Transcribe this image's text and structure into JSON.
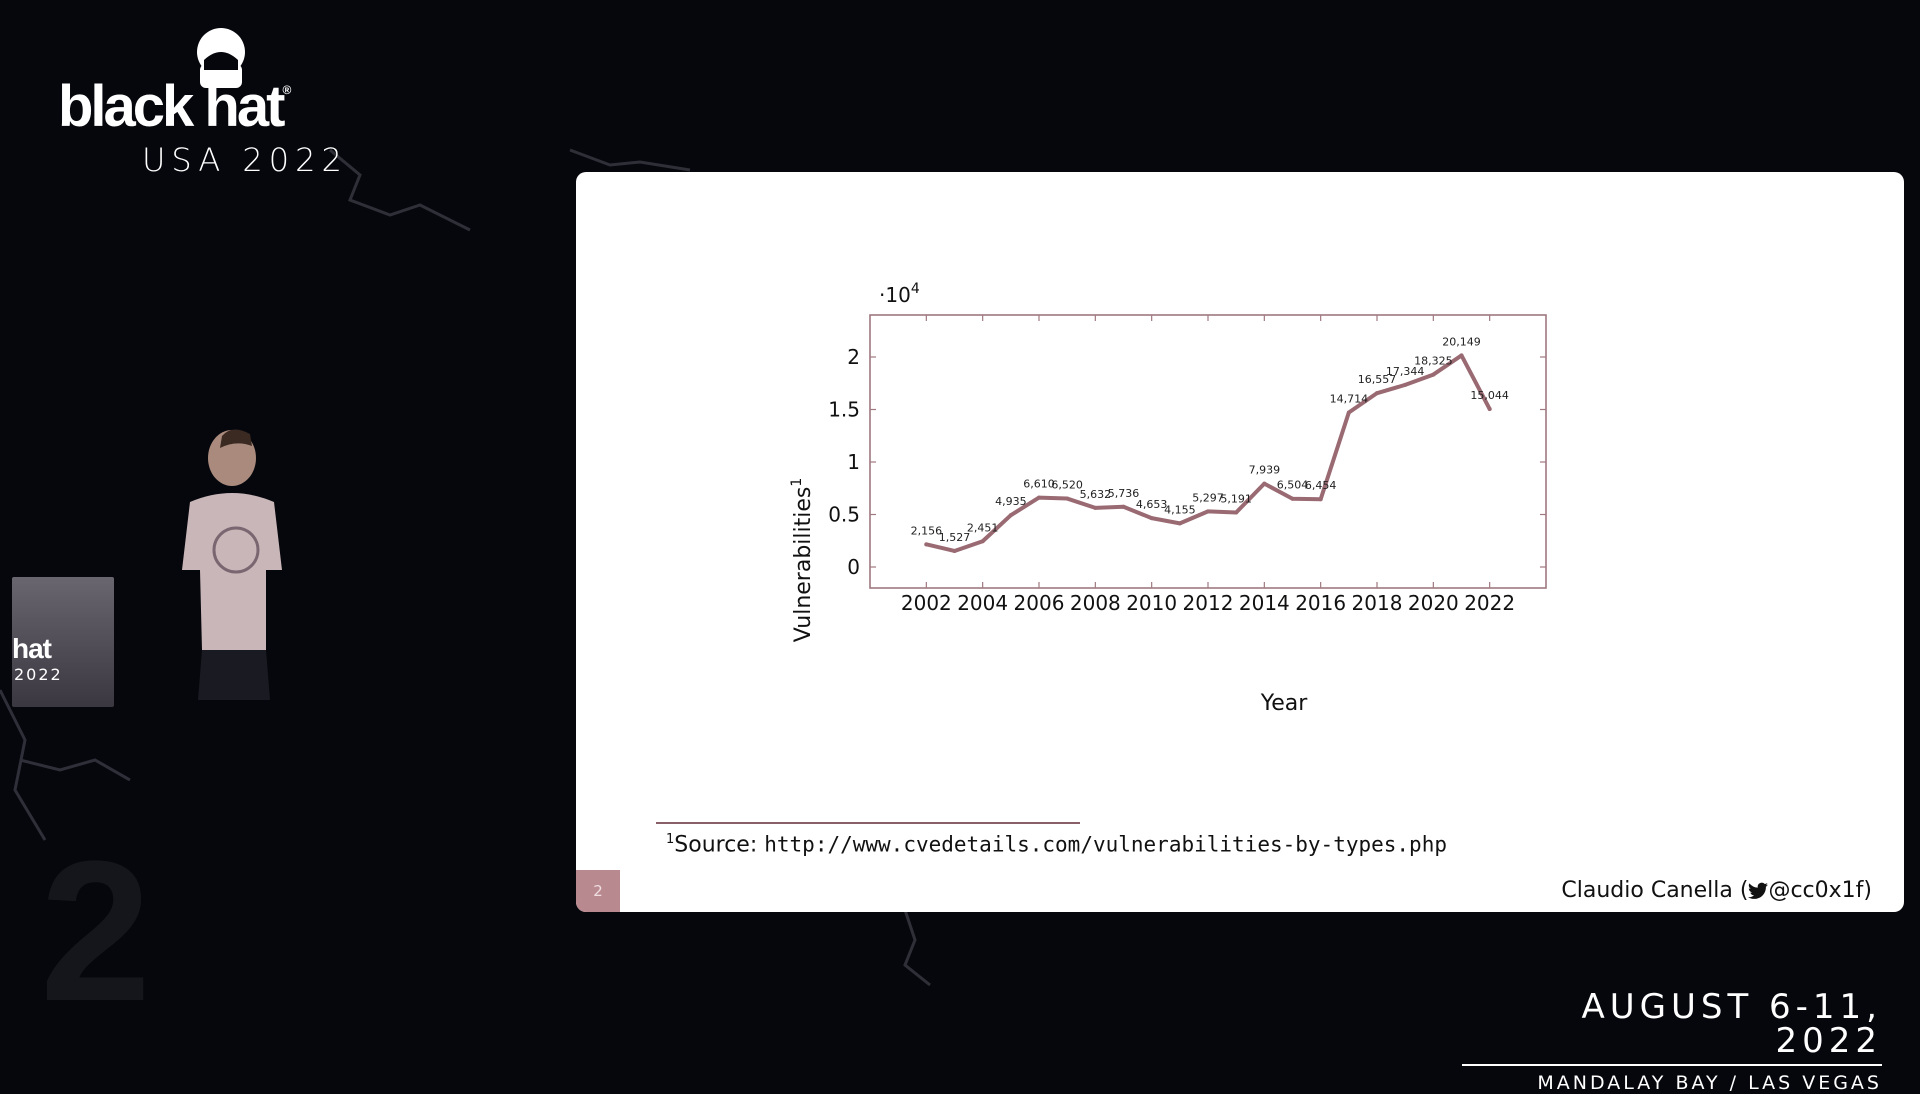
{
  "event": {
    "brand": "black hat",
    "edition": "USA 2022",
    "dates": "AUGUST 6-11, 2022",
    "venue": "MANDALAY BAY / LAS VEGAS",
    "podium_brand": "hat",
    "podium_year": "2022"
  },
  "slide": {
    "page_number": "2",
    "footnote_marker": "1",
    "footnote_prefix": "Source: ",
    "footnote_url": "http://www.cvedetails.com/vulnerabilities-by-types.php",
    "author": "Claudio Canella (",
    "author_handle": "@cc0x1f)",
    "icons": [
      "twitter-bird-icon"
    ]
  },
  "chart_data": {
    "type": "line",
    "xlabel": "Year",
    "ylabel": "Vulnerabilities",
    "ylabel_superscript": "1",
    "y_multiplier": "·10",
    "y_multiplier_exp": "4",
    "xlim": [
      2000,
      2024
    ],
    "ylim": [
      -2000,
      24000
    ],
    "x_ticks": [
      "2002",
      "2004",
      "2006",
      "2008",
      "2010",
      "2012",
      "2014",
      "2016",
      "2018",
      "2020",
      "2022"
    ],
    "y_ticks": [
      "0",
      "0.5",
      "1",
      "1.5",
      "2"
    ],
    "line_color": "#9a6a73",
    "grid": false,
    "series": [
      {
        "x": [
          2002,
          2003,
          2004,
          2005,
          2006,
          2007,
          2008,
          2009,
          2010,
          2011,
          2012,
          2013,
          2014,
          2015,
          2016,
          2017,
          2018,
          2019,
          2020,
          2021,
          2022
        ],
        "values": [
          2156,
          1527,
          2451,
          4935,
          6610,
          6520,
          5632,
          5736,
          4653,
          4155,
          5297,
          5191,
          7939,
          6504,
          6454,
          14714,
          16557,
          17344,
          18325,
          20149,
          15044
        ],
        "labels": [
          "2,156",
          "1,527",
          "2,451",
          "4,935",
          "6,610",
          "6,520",
          "5,632",
          "5,736",
          "4,653",
          "4,155",
          "5,297",
          "5,191",
          "7,939",
          "6,504",
          "6,454",
          "14,714",
          "16,557",
          "17,344",
          "18,325",
          "20,149",
          "15,044"
        ]
      }
    ]
  }
}
